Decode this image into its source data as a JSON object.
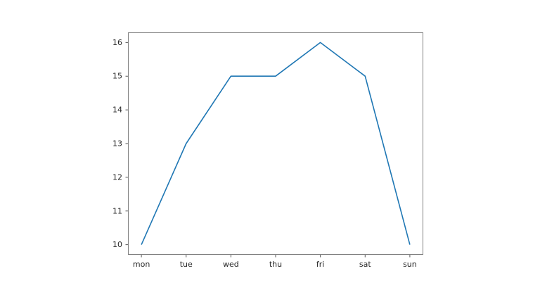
{
  "figure": {
    "background": "#ffffff"
  },
  "chart_data": {
    "type": "line",
    "categories": [
      "mon",
      "tue",
      "wed",
      "thu",
      "fri",
      "sat",
      "sun"
    ],
    "values": [
      10,
      13,
      15,
      15,
      16,
      15,
      10
    ],
    "series": [
      {
        "name": "",
        "values": [
          10,
          13,
          15,
          15,
          16,
          15,
          10
        ]
      }
    ],
    "title": "",
    "xlabel": "",
    "ylabel": "",
    "ylim": [
      9.7,
      16.3
    ],
    "yticks": [
      10,
      11,
      12,
      13,
      14,
      15,
      16
    ],
    "grid": false,
    "legend": null,
    "line_color": "#1f77b4",
    "spine_color": "#808080",
    "tick_color": "#555555",
    "tick_label_color": "#262626"
  }
}
